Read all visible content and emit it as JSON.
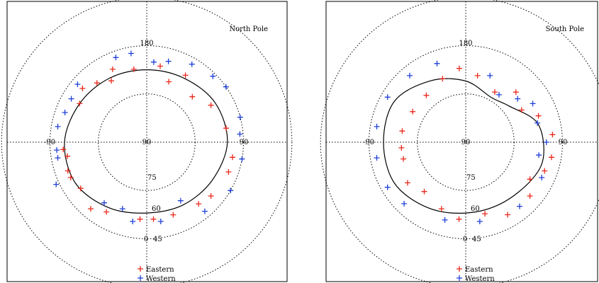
{
  "chart_data": [
    {
      "type": "scatter",
      "projection": "polar",
      "title": "North Pole",
      "rings": [
        {
          "latitude": 75,
          "label": "75"
        },
        {
          "latitude": 60,
          "label": "60"
        },
        {
          "latitude": 45,
          "label": "45"
        }
      ],
      "axis_labels": {
        "top": "180",
        "left": "-90",
        "right": "90",
        "bottom": "0",
        "center": "90"
      },
      "legend": {
        "placement": "bottom-center",
        "entries": [
          {
            "name": "Eastern",
            "color": "#e8281a",
            "marker": "plus"
          },
          {
            "name": "Western",
            "color": "#1f3fd6",
            "marker": "plus"
          }
        ]
      },
      "series": [
        {
          "name": "Eastern",
          "color": "#e8281a",
          "points": [
            {
              "lon": 175,
              "lat": 66
            },
            {
              "lon": -175,
              "lat": 66
            },
            {
              "lon": 160,
              "lat": 66
            },
            {
              "lon": 140,
              "lat": 65
            },
            {
              "lon": 130,
              "lat": 64
            },
            {
              "lon": 110,
              "lat": 63
            },
            {
              "lon": 100,
              "lat": 63
            },
            {
              "lon": -150,
              "lat": 65
            },
            {
              "lon": -140,
              "lat": 63
            },
            {
              "lon": -125,
              "lat": 65
            },
            {
              "lon": -115,
              "lat": 64
            },
            {
              "lon": -110,
              "lat": 64
            },
            {
              "lon": -100,
              "lat": 65
            },
            {
              "lon": -95,
              "lat": 64
            },
            {
              "lon": -60,
              "lat": 66
            },
            {
              "lon": -50,
              "lat": 64
            },
            {
              "lon": -40,
              "lat": 66
            },
            {
              "lon": -30,
              "lat": 68
            },
            {
              "lon": -25,
              "lat": 65
            },
            {
              "lon": -10,
              "lat": 67
            },
            {
              "lon": 10,
              "lat": 66
            },
            {
              "lon": 20,
              "lat": 70
            },
            {
              "lon": 30,
              "lat": 66
            },
            {
              "lon": 45,
              "lat": 70
            },
            {
              "lon": 60,
              "lat": 67
            },
            {
              "lon": 80,
              "lat": 65
            }
          ]
        },
        {
          "name": "Western",
          "color": "#1f3fd6",
          "points": [
            {
              "lon": -170,
              "lat": 65
            },
            {
              "lon": 170,
              "lat": 65
            },
            {
              "lon": 150,
              "lat": 69
            },
            {
              "lon": 140,
              "lat": 62
            },
            {
              "lon": 120,
              "lat": 60
            },
            {
              "lon": 100,
              "lat": 60
            },
            {
              "lon": 85,
              "lat": 61
            },
            {
              "lon": 75,
              "lat": 60
            },
            {
              "lon": -160,
              "lat": 68
            },
            {
              "lon": -145,
              "lat": 67
            },
            {
              "lon": -115,
              "lat": 59
            },
            {
              "lon": -100,
              "lat": 62
            },
            {
              "lon": -95,
              "lat": 62
            },
            {
              "lon": -80,
              "lat": 62
            },
            {
              "lon": -70,
              "lat": 63
            },
            {
              "lon": -60,
              "lat": 63
            },
            {
              "lon": -50,
              "lat": 62
            },
            {
              "lon": -20,
              "lat": 62
            },
            {
              "lon": -10,
              "lat": 62
            },
            {
              "lon": 5,
              "lat": 65
            },
            {
              "lon": 15,
              "lat": 64
            },
            {
              "lon": 30,
              "lat": 62
            },
            {
              "lon": 45,
              "lat": 61
            },
            {
              "lon": 55,
              "lat": 60
            }
          ]
        }
      ],
      "boundary": [
        {
          "lon": 180,
          "lat": 68
        },
        {
          "lon": 150,
          "lat": 67.5
        },
        {
          "lon": 120,
          "lat": 66.5
        },
        {
          "lon": 90,
          "lat": 65
        },
        {
          "lon": 60,
          "lat": 65.5
        },
        {
          "lon": 30,
          "lat": 67
        },
        {
          "lon": 0,
          "lat": 67.5
        },
        {
          "lon": -30,
          "lat": 67
        },
        {
          "lon": -60,
          "lat": 66
        },
        {
          "lon": -90,
          "lat": 64.5
        },
        {
          "lon": -120,
          "lat": 64.5
        },
        {
          "lon": -150,
          "lat": 66.5
        }
      ]
    },
    {
      "type": "scatter",
      "projection": "polar",
      "title": "South Pole",
      "rings": [
        {
          "latitude": 75,
          "label": "75"
        },
        {
          "latitude": 60,
          "label": "60"
        },
        {
          "latitude": 45,
          "label": "45"
        }
      ],
      "axis_labels": {
        "top": "180",
        "left": "-90",
        "right": "90",
        "bottom": "0",
        "center": "90"
      },
      "legend": {
        "placement": "bottom-center",
        "entries": [
          {
            "name": "Eastern",
            "color": "#e8281a",
            "marker": "plus"
          },
          {
            "name": "Western",
            "color": "#1f3fd6",
            "marker": "plus"
          }
        ]
      },
      "series": [
        {
          "name": "Eastern",
          "color": "#e8281a",
          "points": [
            {
              "lon": -175,
              "lat": 66
            },
            {
              "lon": 165,
              "lat": 67
            },
            {
              "lon": 150,
              "lat": 64
            },
            {
              "lon": 130,
              "lat": 64
            },
            {
              "lon": 110,
              "lat": 64
            },
            {
              "lon": 100,
              "lat": 63
            },
            {
              "lon": 85,
              "lat": 63
            },
            {
              "lon": -160,
              "lat": 68
            },
            {
              "lon": -140,
              "lat": 70
            },
            {
              "lon": -125,
              "lat": 68
            },
            {
              "lon": -105,
              "lat": 70
            },
            {
              "lon": -95,
              "lat": 70
            },
            {
              "lon": -80,
              "lat": 70
            },
            {
              "lon": -60,
              "lat": 71
            },
            {
              "lon": -40,
              "lat": 71
            },
            {
              "lon": -20,
              "lat": 69
            },
            {
              "lon": -5,
              "lat": 67
            },
            {
              "lon": 10,
              "lat": 69
            },
            {
              "lon": 30,
              "lat": 72
            },
            {
              "lon": 45,
              "lat": 68
            },
            {
              "lon": 60,
              "lat": 70
            },
            {
              "lon": 70,
              "lat": 66
            },
            {
              "lon": 120,
              "lat": 67
            }
          ]
        },
        {
          "name": "Western",
          "color": "#1f3fd6",
          "points": [
            {
              "lon": 170,
              "lat": 65
            },
            {
              "lon": 140,
              "lat": 64
            },
            {
              "lon": 115,
              "lat": 64
            },
            {
              "lon": 100,
              "lat": 67
            },
            {
              "lon": 90,
              "lat": 65
            },
            {
              "lon": 75,
              "lat": 67
            },
            {
              "lon": -165,
              "lat": 65
            },
            {
              "lon": -135,
              "lat": 63
            },
            {
              "lon": -120,
              "lat": 62
            },
            {
              "lon": -100,
              "lat": 62
            },
            {
              "lon": -80,
              "lat": 62
            },
            {
              "lon": -60,
              "lat": 62
            },
            {
              "lon": -40,
              "lat": 63
            },
            {
              "lon": -20,
              "lat": 64
            },
            {
              "lon": 20,
              "lat": 68
            },
            {
              "lon": 35,
              "lat": 72
            },
            {
              "lon": 50,
              "lat": 69
            },
            {
              "lon": 60,
              "lat": 66
            }
          ]
        }
      ],
      "boundary": [
        {
          "lon": 180,
          "lat": 68
        },
        {
          "lon": 150,
          "lat": 68
        },
        {
          "lon": 120,
          "lat": 66.5
        },
        {
          "lon": 100,
          "lat": 65.5
        },
        {
          "lon": 75,
          "lat": 67
        },
        {
          "lon": 50,
          "lat": 72.5
        },
        {
          "lon": 30,
          "lat": 74
        },
        {
          "lon": 0,
          "lat": 71
        },
        {
          "lon": -30,
          "lat": 68
        },
        {
          "lon": -60,
          "lat": 64.5
        },
        {
          "lon": -90,
          "lat": 64.5
        },
        {
          "lon": -120,
          "lat": 64.5
        },
        {
          "lon": -150,
          "lat": 66.5
        }
      ]
    }
  ]
}
